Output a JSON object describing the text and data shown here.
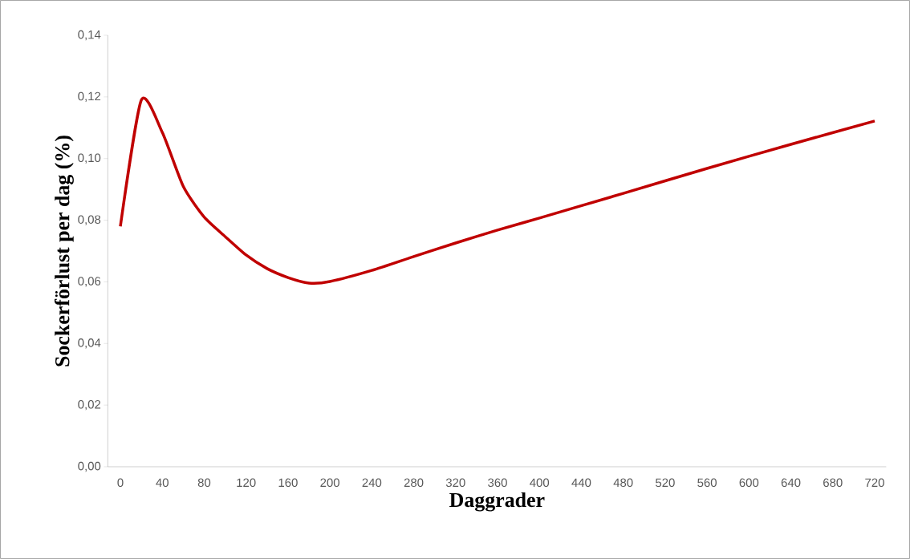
{
  "chart_data": {
    "type": "line",
    "xlabel": "Daggrader",
    "ylabel": "Sockerförlust per dag (%)",
    "x": [
      0,
      20,
      40,
      60,
      80,
      100,
      120,
      140,
      160,
      180,
      200,
      240,
      280,
      320,
      360,
      400,
      480,
      560,
      640,
      720
    ],
    "series": [
      {
        "color": "#c00000",
        "values": [
          0.078,
          0.119,
          0.1085,
          0.091,
          0.081,
          0.0747,
          0.0687,
          0.0643,
          0.0614,
          0.0596,
          0.0601,
          0.0637,
          0.0682,
          0.0726,
          0.0768,
          0.0807,
          0.0887,
          0.0968,
          0.1046,
          0.1122
        ]
      }
    ],
    "xlim": [
      -12,
      731
    ],
    "xticks": [
      0,
      40,
      80,
      120,
      160,
      200,
      240,
      280,
      320,
      360,
      400,
      440,
      480,
      520,
      560,
      600,
      640,
      680,
      720
    ],
    "ylim": [
      0,
      0.14
    ],
    "yticks": [
      {
        "value": 0,
        "label": "0,00"
      },
      {
        "value": 0.02,
        "label": "0,02"
      },
      {
        "value": 0.04,
        "label": "0,04"
      },
      {
        "value": 0.06,
        "label": "0,06"
      },
      {
        "value": 0.08,
        "label": "0,08"
      },
      {
        "value": 0.1,
        "label": "0,10"
      },
      {
        "value": 0.12,
        "label": "0,12"
      },
      {
        "value": 0.14,
        "label": "0,14"
      }
    ],
    "grid": false,
    "marker": "none",
    "line_style": "solid"
  }
}
